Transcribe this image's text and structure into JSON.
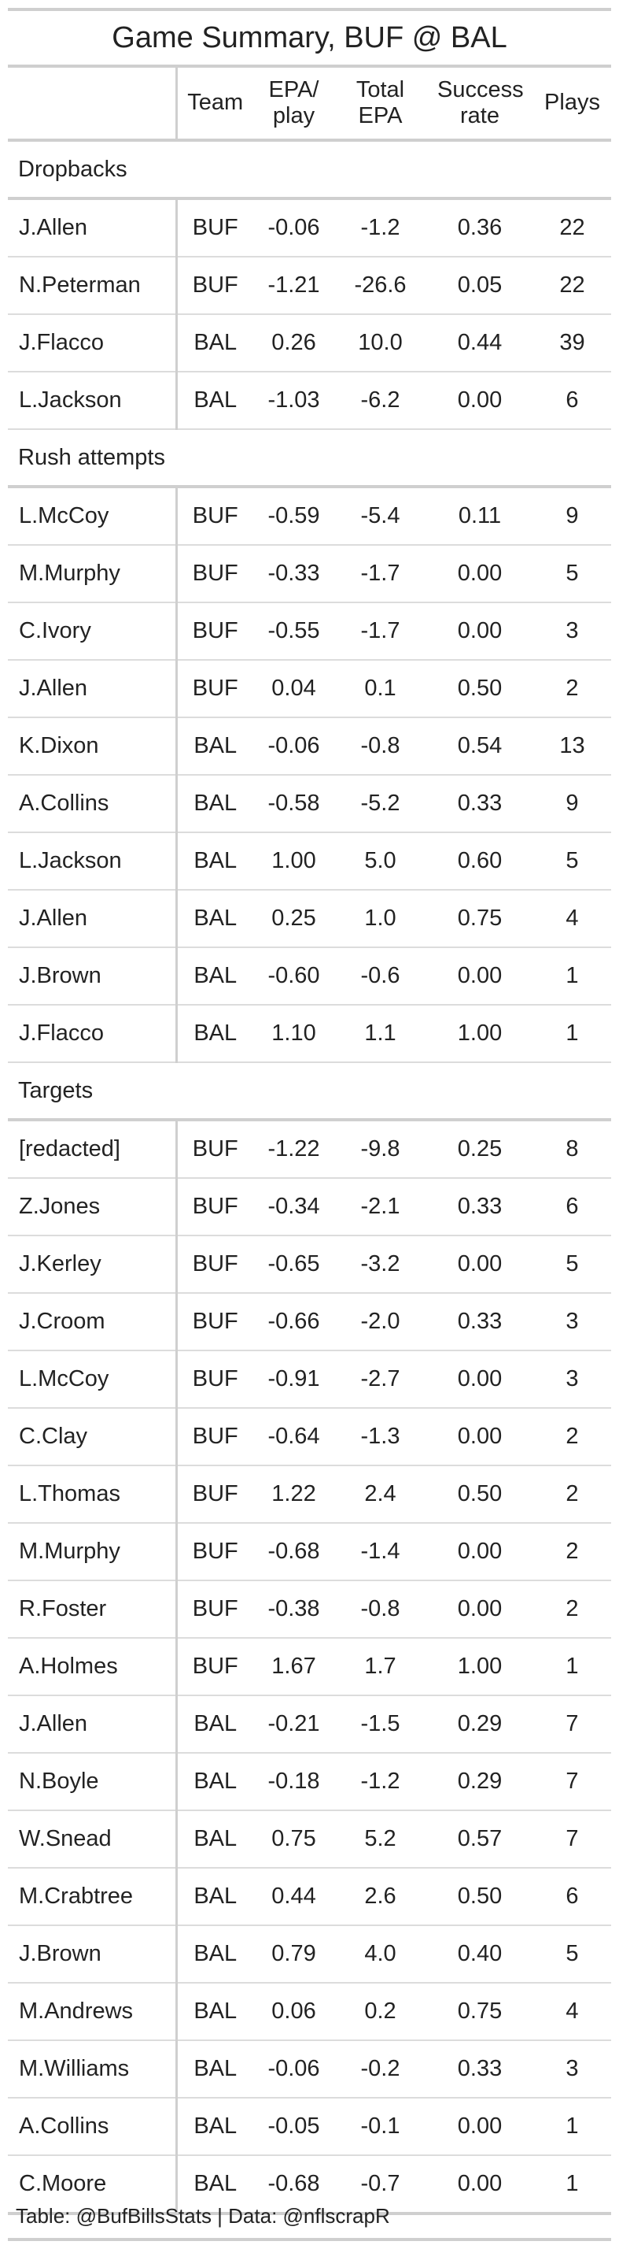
{
  "title": "Game Summary, BUF @ BAL",
  "columns": {
    "player": "",
    "team": "Team",
    "epa_play": "EPA/ play",
    "total_epa": "Total EPA",
    "success_rate": "Success rate",
    "plays": "Plays"
  },
  "groups": [
    {
      "label": "Dropbacks",
      "rows": [
        {
          "player": "J.Allen",
          "team": "BUF",
          "epa_play": "-0.06",
          "total_epa": "-1.2",
          "success_rate": "0.36",
          "plays": "22"
        },
        {
          "player": "N.Peterman",
          "team": "BUF",
          "epa_play": "-1.21",
          "total_epa": "-26.6",
          "success_rate": "0.05",
          "plays": "22"
        },
        {
          "player": "J.Flacco",
          "team": "BAL",
          "epa_play": "0.26",
          "total_epa": "10.0",
          "success_rate": "0.44",
          "plays": "39"
        },
        {
          "player": "L.Jackson",
          "team": "BAL",
          "epa_play": "-1.03",
          "total_epa": "-6.2",
          "success_rate": "0.00",
          "plays": "6"
        }
      ]
    },
    {
      "label": "Rush attempts",
      "rows": [
        {
          "player": "L.McCoy",
          "team": "BUF",
          "epa_play": "-0.59",
          "total_epa": "-5.4",
          "success_rate": "0.11",
          "plays": "9"
        },
        {
          "player": "M.Murphy",
          "team": "BUF",
          "epa_play": "-0.33",
          "total_epa": "-1.7",
          "success_rate": "0.00",
          "plays": "5"
        },
        {
          "player": "C.Ivory",
          "team": "BUF",
          "epa_play": "-0.55",
          "total_epa": "-1.7",
          "success_rate": "0.00",
          "plays": "3"
        },
        {
          "player": "J.Allen",
          "team": "BUF",
          "epa_play": "0.04",
          "total_epa": "0.1",
          "success_rate": "0.50",
          "plays": "2"
        },
        {
          "player": "K.Dixon",
          "team": "BAL",
          "epa_play": "-0.06",
          "total_epa": "-0.8",
          "success_rate": "0.54",
          "plays": "13"
        },
        {
          "player": "A.Collins",
          "team": "BAL",
          "epa_play": "-0.58",
          "total_epa": "-5.2",
          "success_rate": "0.33",
          "plays": "9"
        },
        {
          "player": "L.Jackson",
          "team": "BAL",
          "epa_play": "1.00",
          "total_epa": "5.0",
          "success_rate": "0.60",
          "plays": "5"
        },
        {
          "player": "J.Allen",
          "team": "BAL",
          "epa_play": "0.25",
          "total_epa": "1.0",
          "success_rate": "0.75",
          "plays": "4"
        },
        {
          "player": "J.Brown",
          "team": "BAL",
          "epa_play": "-0.60",
          "total_epa": "-0.6",
          "success_rate": "0.00",
          "plays": "1"
        },
        {
          "player": "J.Flacco",
          "team": "BAL",
          "epa_play": "1.10",
          "total_epa": "1.1",
          "success_rate": "1.00",
          "plays": "1"
        }
      ]
    },
    {
      "label": "Targets",
      "rows": [
        {
          "player": "[redacted]",
          "team": "BUF",
          "epa_play": "-1.22",
          "total_epa": "-9.8",
          "success_rate": "0.25",
          "plays": "8"
        },
        {
          "player": "Z.Jones",
          "team": "BUF",
          "epa_play": "-0.34",
          "total_epa": "-2.1",
          "success_rate": "0.33",
          "plays": "6"
        },
        {
          "player": "J.Kerley",
          "team": "BUF",
          "epa_play": "-0.65",
          "total_epa": "-3.2",
          "success_rate": "0.00",
          "plays": "5"
        },
        {
          "player": "J.Croom",
          "team": "BUF",
          "epa_play": "-0.66",
          "total_epa": "-2.0",
          "success_rate": "0.33",
          "plays": "3"
        },
        {
          "player": "L.McCoy",
          "team": "BUF",
          "epa_play": "-0.91",
          "total_epa": "-2.7",
          "success_rate": "0.00",
          "plays": "3"
        },
        {
          "player": "C.Clay",
          "team": "BUF",
          "epa_play": "-0.64",
          "total_epa": "-1.3",
          "success_rate": "0.00",
          "plays": "2"
        },
        {
          "player": "L.Thomas",
          "team": "BUF",
          "epa_play": "1.22",
          "total_epa": "2.4",
          "success_rate": "0.50",
          "plays": "2"
        },
        {
          "player": "M.Murphy",
          "team": "BUF",
          "epa_play": "-0.68",
          "total_epa": "-1.4",
          "success_rate": "0.00",
          "plays": "2"
        },
        {
          "player": "R.Foster",
          "team": "BUF",
          "epa_play": "-0.38",
          "total_epa": "-0.8",
          "success_rate": "0.00",
          "plays": "2"
        },
        {
          "player": "A.Holmes",
          "team": "BUF",
          "epa_play": "1.67",
          "total_epa": "1.7",
          "success_rate": "1.00",
          "plays": "1"
        },
        {
          "player": "J.Allen",
          "team": "BAL",
          "epa_play": "-0.21",
          "total_epa": "-1.5",
          "success_rate": "0.29",
          "plays": "7"
        },
        {
          "player": "N.Boyle",
          "team": "BAL",
          "epa_play": "-0.18",
          "total_epa": "-1.2",
          "success_rate": "0.29",
          "plays": "7"
        },
        {
          "player": "W.Snead",
          "team": "BAL",
          "epa_play": "0.75",
          "total_epa": "5.2",
          "success_rate": "0.57",
          "plays": "7"
        },
        {
          "player": "M.Crabtree",
          "team": "BAL",
          "epa_play": "0.44",
          "total_epa": "2.6",
          "success_rate": "0.50",
          "plays": "6"
        },
        {
          "player": "J.Brown",
          "team": "BAL",
          "epa_play": "0.79",
          "total_epa": "4.0",
          "success_rate": "0.40",
          "plays": "5"
        },
        {
          "player": "M.Andrews",
          "team": "BAL",
          "epa_play": "0.06",
          "total_epa": "0.2",
          "success_rate": "0.75",
          "plays": "4"
        },
        {
          "player": "M.Williams",
          "team": "BAL",
          "epa_play": "-0.06",
          "total_epa": "-0.2",
          "success_rate": "0.33",
          "plays": "3"
        },
        {
          "player": "A.Collins",
          "team": "BAL",
          "epa_play": "-0.05",
          "total_epa": "-0.1",
          "success_rate": "0.00",
          "plays": "1"
        },
        {
          "player": "C.Moore",
          "team": "BAL",
          "epa_play": "-0.68",
          "total_epa": "-0.7",
          "success_rate": "0.00",
          "plays": "1"
        }
      ]
    }
  ],
  "source_note": "Table: @BufBillsStats | Data: @nflscrapR"
}
